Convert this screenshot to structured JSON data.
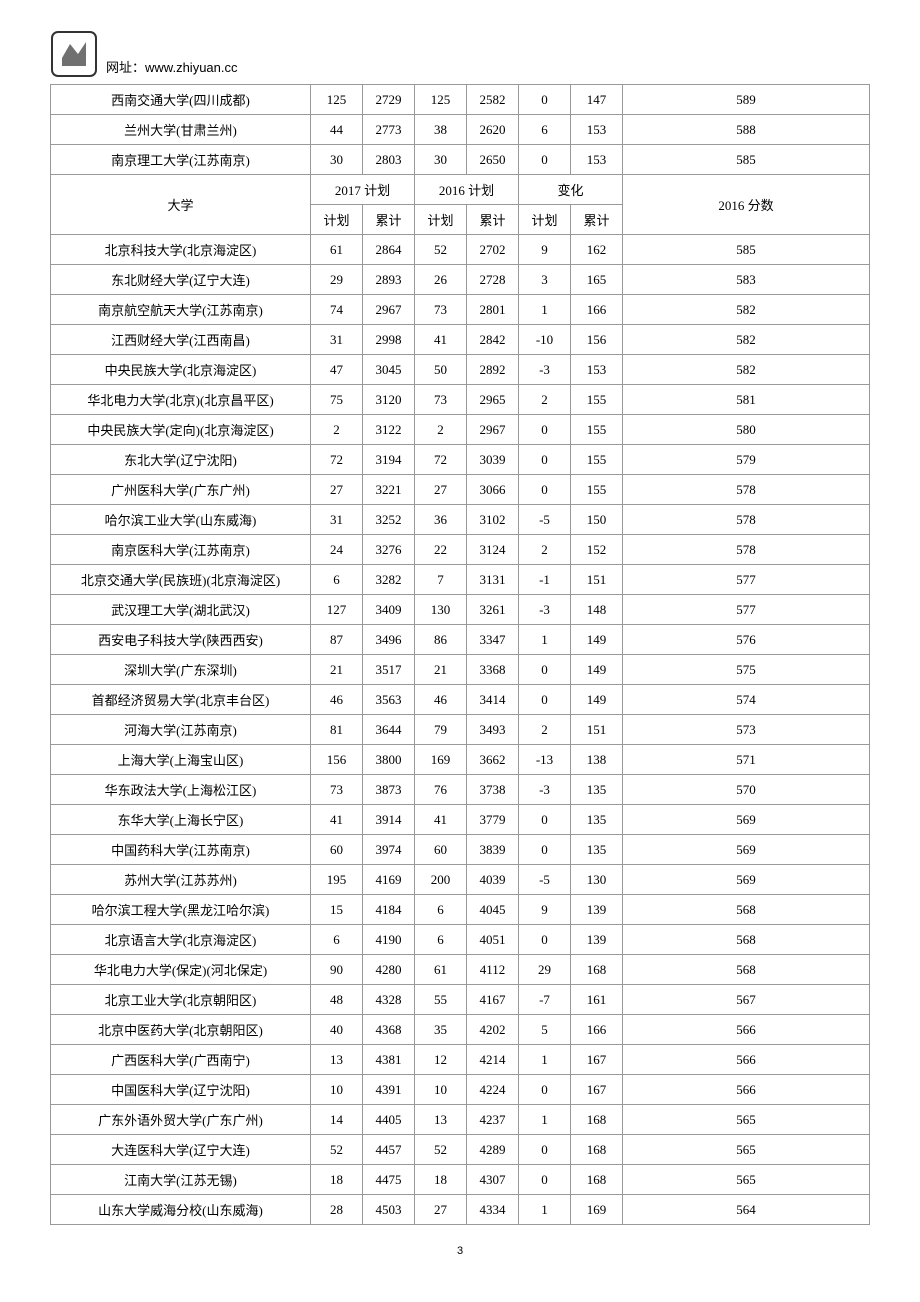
{
  "header": {
    "url_label": "网址：",
    "url": "www.zhiyuan.cc"
  },
  "table": {
    "top_rows": [
      {
        "name": "西南交通大学(四川成都)",
        "c1": 125,
        "c2": 2729,
        "c3": 125,
        "c4": 2582,
        "c5": 0,
        "c6": 147,
        "c7": 589
      },
      {
        "name": "兰州大学(甘肃兰州)",
        "c1": 44,
        "c2": 2773,
        "c3": 38,
        "c4": 2620,
        "c5": 6,
        "c6": 153,
        "c7": 588
      },
      {
        "name": "南京理工大学(江苏南京)",
        "c1": 30,
        "c2": 2803,
        "c3": 30,
        "c4": 2650,
        "c5": 0,
        "c6": 153,
        "c7": 585
      }
    ],
    "header_row1": {
      "univ": "大学",
      "g1": "2017 计划",
      "g2": "2016 计划",
      "g3": "变化",
      "score": "2016 分数"
    },
    "header_row2": {
      "h1": "计划",
      "h2": "累计",
      "h3": "计划",
      "h4": "累计",
      "h5": "计划",
      "h6": "累计"
    },
    "rows": [
      {
        "name": "北京科技大学(北京海淀区)",
        "c1": 61,
        "c2": 2864,
        "c3": 52,
        "c4": 2702,
        "c5": 9,
        "c6": 162,
        "c7": 585
      },
      {
        "name": "东北财经大学(辽宁大连)",
        "c1": 29,
        "c2": 2893,
        "c3": 26,
        "c4": 2728,
        "c5": 3,
        "c6": 165,
        "c7": 583
      },
      {
        "name": "南京航空航天大学(江苏南京)",
        "c1": 74,
        "c2": 2967,
        "c3": 73,
        "c4": 2801,
        "c5": 1,
        "c6": 166,
        "c7": 582
      },
      {
        "name": "江西财经大学(江西南昌)",
        "c1": 31,
        "c2": 2998,
        "c3": 41,
        "c4": 2842,
        "c5": -10,
        "c6": 156,
        "c7": 582
      },
      {
        "name": "中央民族大学(北京海淀区)",
        "c1": 47,
        "c2": 3045,
        "c3": 50,
        "c4": 2892,
        "c5": -3,
        "c6": 153,
        "c7": 582
      },
      {
        "name": "华北电力大学(北京)(北京昌平区)",
        "c1": 75,
        "c2": 3120,
        "c3": 73,
        "c4": 2965,
        "c5": 2,
        "c6": 155,
        "c7": 581
      },
      {
        "name": "中央民族大学(定向)(北京海淀区)",
        "c1": 2,
        "c2": 3122,
        "c3": 2,
        "c4": 2967,
        "c5": 0,
        "c6": 155,
        "c7": 580
      },
      {
        "name": "东北大学(辽宁沈阳)",
        "c1": 72,
        "c2": 3194,
        "c3": 72,
        "c4": 3039,
        "c5": 0,
        "c6": 155,
        "c7": 579
      },
      {
        "name": "广州医科大学(广东广州)",
        "c1": 27,
        "c2": 3221,
        "c3": 27,
        "c4": 3066,
        "c5": 0,
        "c6": 155,
        "c7": 578
      },
      {
        "name": "哈尔滨工业大学(山东威海)",
        "c1": 31,
        "c2": 3252,
        "c3": 36,
        "c4": 3102,
        "c5": -5,
        "c6": 150,
        "c7": 578
      },
      {
        "name": "南京医科大学(江苏南京)",
        "c1": 24,
        "c2": 3276,
        "c3": 22,
        "c4": 3124,
        "c5": 2,
        "c6": 152,
        "c7": 578
      },
      {
        "name": "北京交通大学(民族班)(北京海淀区)",
        "c1": 6,
        "c2": 3282,
        "c3": 7,
        "c4": 3131,
        "c5": -1,
        "c6": 151,
        "c7": 577
      },
      {
        "name": "武汉理工大学(湖北武汉)",
        "c1": 127,
        "c2": 3409,
        "c3": 130,
        "c4": 3261,
        "c5": -3,
        "c6": 148,
        "c7": 577
      },
      {
        "name": "西安电子科技大学(陕西西安)",
        "c1": 87,
        "c2": 3496,
        "c3": 86,
        "c4": 3347,
        "c5": 1,
        "c6": 149,
        "c7": 576
      },
      {
        "name": "深圳大学(广东深圳)",
        "c1": 21,
        "c2": 3517,
        "c3": 21,
        "c4": 3368,
        "c5": 0,
        "c6": 149,
        "c7": 575
      },
      {
        "name": "首都经济贸易大学(北京丰台区)",
        "c1": 46,
        "c2": 3563,
        "c3": 46,
        "c4": 3414,
        "c5": 0,
        "c6": 149,
        "c7": 574
      },
      {
        "name": "河海大学(江苏南京)",
        "c1": 81,
        "c2": 3644,
        "c3": 79,
        "c4": 3493,
        "c5": 2,
        "c6": 151,
        "c7": 573
      },
      {
        "name": "上海大学(上海宝山区)",
        "c1": 156,
        "c2": 3800,
        "c3": 169,
        "c4": 3662,
        "c5": -13,
        "c6": 138,
        "c7": 571
      },
      {
        "name": "华东政法大学(上海松江区)",
        "c1": 73,
        "c2": 3873,
        "c3": 76,
        "c4": 3738,
        "c5": -3,
        "c6": 135,
        "c7": 570
      },
      {
        "name": "东华大学(上海长宁区)",
        "c1": 41,
        "c2": 3914,
        "c3": 41,
        "c4": 3779,
        "c5": 0,
        "c6": 135,
        "c7": 569
      },
      {
        "name": "中国药科大学(江苏南京)",
        "c1": 60,
        "c2": 3974,
        "c3": 60,
        "c4": 3839,
        "c5": 0,
        "c6": 135,
        "c7": 569
      },
      {
        "name": "苏州大学(江苏苏州)",
        "c1": 195,
        "c2": 4169,
        "c3": 200,
        "c4": 4039,
        "c5": -5,
        "c6": 130,
        "c7": 569
      },
      {
        "name": "哈尔滨工程大学(黑龙江哈尔滨)",
        "c1": 15,
        "c2": 4184,
        "c3": 6,
        "c4": 4045,
        "c5": 9,
        "c6": 139,
        "c7": 568
      },
      {
        "name": "北京语言大学(北京海淀区)",
        "c1": 6,
        "c2": 4190,
        "c3": 6,
        "c4": 4051,
        "c5": 0,
        "c6": 139,
        "c7": 568
      },
      {
        "name": "华北电力大学(保定)(河北保定)",
        "c1": 90,
        "c2": 4280,
        "c3": 61,
        "c4": 4112,
        "c5": 29,
        "c6": 168,
        "c7": 568
      },
      {
        "name": "北京工业大学(北京朝阳区)",
        "c1": 48,
        "c2": 4328,
        "c3": 55,
        "c4": 4167,
        "c5": -7,
        "c6": 161,
        "c7": 567
      },
      {
        "name": "北京中医药大学(北京朝阳区)",
        "c1": 40,
        "c2": 4368,
        "c3": 35,
        "c4": 4202,
        "c5": 5,
        "c6": 166,
        "c7": 566
      },
      {
        "name": "广西医科大学(广西南宁)",
        "c1": 13,
        "c2": 4381,
        "c3": 12,
        "c4": 4214,
        "c5": 1,
        "c6": 167,
        "c7": 566
      },
      {
        "name": "中国医科大学(辽宁沈阳)",
        "c1": 10,
        "c2": 4391,
        "c3": 10,
        "c4": 4224,
        "c5": 0,
        "c6": 167,
        "c7": 566
      },
      {
        "name": "广东外语外贸大学(广东广州)",
        "c1": 14,
        "c2": 4405,
        "c3": 13,
        "c4": 4237,
        "c5": 1,
        "c6": 168,
        "c7": 565
      },
      {
        "name": "大连医科大学(辽宁大连)",
        "c1": 52,
        "c2": 4457,
        "c3": 52,
        "c4": 4289,
        "c5": 0,
        "c6": 168,
        "c7": 565
      },
      {
        "name": "江南大学(江苏无锡)",
        "c1": 18,
        "c2": 4475,
        "c3": 18,
        "c4": 4307,
        "c5": 0,
        "c6": 168,
        "c7": 565
      },
      {
        "name": "山东大学威海分校(山东威海)",
        "c1": 28,
        "c2": 4503,
        "c3": 27,
        "c4": 4334,
        "c5": 1,
        "c6": 169,
        "c7": 564
      }
    ]
  },
  "page_number": "3"
}
